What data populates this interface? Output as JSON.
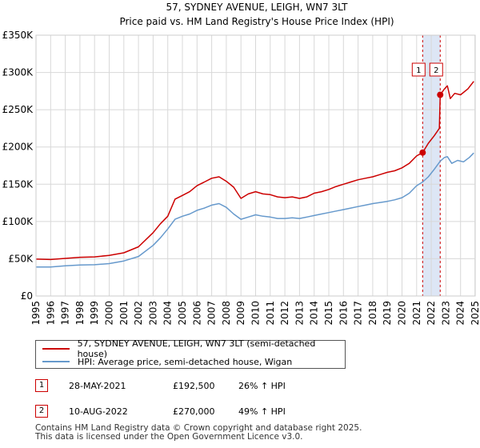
{
  "chart_data": {
    "type": "line",
    "title": "57, SYDNEY AVENUE, LEIGH, WN7 3LT",
    "subtitle": "Price paid vs. HM Land Registry's House Price Index (HPI)",
    "xlim": [
      1995,
      2025
    ],
    "ylim": [
      0,
      350000
    ],
    "x_ticks": [
      "1995",
      "1996",
      "1997",
      "1998",
      "1999",
      "2000",
      "2001",
      "2002",
      "2003",
      "2004",
      "2005",
      "2006",
      "2007",
      "2008",
      "2009",
      "2010",
      "2011",
      "2012",
      "2013",
      "2014",
      "2015",
      "2016",
      "2017",
      "2018",
      "2019",
      "2020",
      "2021",
      "2022",
      "2023",
      "2024",
      "2025"
    ],
    "y_ticks": [
      {
        "value": 0,
        "label": "£0"
      },
      {
        "value": 50000,
        "label": "£50K"
      },
      {
        "value": 100000,
        "label": "£100K"
      },
      {
        "value": 150000,
        "label": "£150K"
      },
      {
        "value": 200000,
        "label": "£200K"
      },
      {
        "value": 250000,
        "label": "£250K"
      },
      {
        "value": 300000,
        "label": "£300K"
      },
      {
        "value": 350000,
        "label": "£350K"
      }
    ],
    "grid": true,
    "colors": {
      "property": "#cc0000",
      "hpi": "#6699cc",
      "band": "#dde6f5",
      "marker_line": "#cc0000",
      "grid": "#d8d8d8"
    },
    "series": [
      {
        "name": "57, SYDNEY AVENUE, LEIGH, WN7 3LT (semi-detached house)",
        "key": "property",
        "points": [
          [
            1995.0,
            49500
          ],
          [
            1996.0,
            49000
          ],
          [
            1997.0,
            50500
          ],
          [
            1998.0,
            52000
          ],
          [
            1999.0,
            52500
          ],
          [
            2000.0,
            54500
          ],
          [
            2001.0,
            58000
          ],
          [
            2002.0,
            66000
          ],
          [
            2003.0,
            85000
          ],
          [
            2003.5,
            97000
          ],
          [
            2004.0,
            107000
          ],
          [
            2004.5,
            130000
          ],
          [
            2005.0,
            135000
          ],
          [
            2005.5,
            140000
          ],
          [
            2006.0,
            148000
          ],
          [
            2006.5,
            153000
          ],
          [
            2007.0,
            158000
          ],
          [
            2007.5,
            160000
          ],
          [
            2008.0,
            154000
          ],
          [
            2008.5,
            146000
          ],
          [
            2009.0,
            131000
          ],
          [
            2009.5,
            137000
          ],
          [
            2010.0,
            140000
          ],
          [
            2010.5,
            137000
          ],
          [
            2011.0,
            136000
          ],
          [
            2011.5,
            133000
          ],
          [
            2012.0,
            132000
          ],
          [
            2012.5,
            133000
          ],
          [
            2013.0,
            131000
          ],
          [
            2013.5,
            133000
          ],
          [
            2014.0,
            138000
          ],
          [
            2014.5,
            140000
          ],
          [
            2015.0,
            143000
          ],
          [
            2015.5,
            147000
          ],
          [
            2016.0,
            150000
          ],
          [
            2016.5,
            153000
          ],
          [
            2017.0,
            156000
          ],
          [
            2017.5,
            158000
          ],
          [
            2018.0,
            160000
          ],
          [
            2018.5,
            163000
          ],
          [
            2019.0,
            166000
          ],
          [
            2019.5,
            168000
          ],
          [
            2020.0,
            172000
          ],
          [
            2020.5,
            178000
          ],
          [
            2021.0,
            188000
          ],
          [
            2021.41,
            192500
          ],
          [
            2021.8,
            205000
          ],
          [
            2022.2,
            215000
          ],
          [
            2022.55,
            225000
          ],
          [
            2022.61,
            270000
          ],
          [
            2022.9,
            278000
          ],
          [
            2023.1,
            282000
          ],
          [
            2023.3,
            265000
          ],
          [
            2023.6,
            272000
          ],
          [
            2024.0,
            270000
          ],
          [
            2024.5,
            278000
          ],
          [
            2024.9,
            288000
          ]
        ]
      },
      {
        "name": "HPI: Average price, semi-detached house, Wigan",
        "key": "hpi",
        "points": [
          [
            1995.0,
            39000
          ],
          [
            1996.0,
            39000
          ],
          [
            1997.0,
            40500
          ],
          [
            1998.0,
            41500
          ],
          [
            1999.0,
            42000
          ],
          [
            2000.0,
            43500
          ],
          [
            2001.0,
            47000
          ],
          [
            2002.0,
            53000
          ],
          [
            2003.0,
            68000
          ],
          [
            2003.5,
            78000
          ],
          [
            2004.0,
            90000
          ],
          [
            2004.5,
            103000
          ],
          [
            2005.0,
            107000
          ],
          [
            2005.5,
            110000
          ],
          [
            2006.0,
            115000
          ],
          [
            2006.5,
            118000
          ],
          [
            2007.0,
            122000
          ],
          [
            2007.5,
            124000
          ],
          [
            2008.0,
            119000
          ],
          [
            2008.5,
            110000
          ],
          [
            2009.0,
            103000
          ],
          [
            2009.5,
            106000
          ],
          [
            2010.0,
            109000
          ],
          [
            2010.5,
            107000
          ],
          [
            2011.0,
            106000
          ],
          [
            2011.5,
            104000
          ],
          [
            2012.0,
            104000
          ],
          [
            2012.5,
            105000
          ],
          [
            2013.0,
            104000
          ],
          [
            2013.5,
            106000
          ],
          [
            2014.0,
            108000
          ],
          [
            2014.5,
            110000
          ],
          [
            2015.0,
            112000
          ],
          [
            2015.5,
            114000
          ],
          [
            2016.0,
            116000
          ],
          [
            2016.5,
            118000
          ],
          [
            2017.0,
            120000
          ],
          [
            2017.5,
            122000
          ],
          [
            2018.0,
            124000
          ],
          [
            2018.5,
            125500
          ],
          [
            2019.0,
            127000
          ],
          [
            2019.5,
            129000
          ],
          [
            2020.0,
            132000
          ],
          [
            2020.5,
            138000
          ],
          [
            2021.0,
            148000
          ],
          [
            2021.41,
            153000
          ],
          [
            2021.8,
            160000
          ],
          [
            2022.2,
            170000
          ],
          [
            2022.61,
            181000
          ],
          [
            2022.9,
            186000
          ],
          [
            2023.1,
            187000
          ],
          [
            2023.4,
            178000
          ],
          [
            2023.8,
            182000
          ],
          [
            2024.2,
            180000
          ],
          [
            2024.6,
            186000
          ],
          [
            2024.9,
            192000
          ]
        ]
      }
    ],
    "annotations": [
      {
        "label": "1",
        "x": 2021.41,
        "y": 192500
      },
      {
        "label": "2",
        "x": 2022.61,
        "y": 270000
      }
    ],
    "shaded_band": [
      2021.41,
      2022.61
    ]
  },
  "legend": {
    "property_label": "57, SYDNEY AVENUE, LEIGH, WN7 3LT (semi-detached house)",
    "hpi_label": "HPI: Average price, semi-detached house, Wigan"
  },
  "sales": [
    {
      "num": "1",
      "date": "28-MAY-2021",
      "price": "£192,500",
      "hpi": "26% ↑ HPI"
    },
    {
      "num": "2",
      "date": "10-AUG-2022",
      "price": "£270,000",
      "hpi": "49% ↑ HPI"
    }
  ],
  "footer": {
    "line1": "Contains HM Land Registry data © Crown copyright and database right 2025.",
    "line2": "This data is licensed under the Open Government Licence v3.0."
  }
}
